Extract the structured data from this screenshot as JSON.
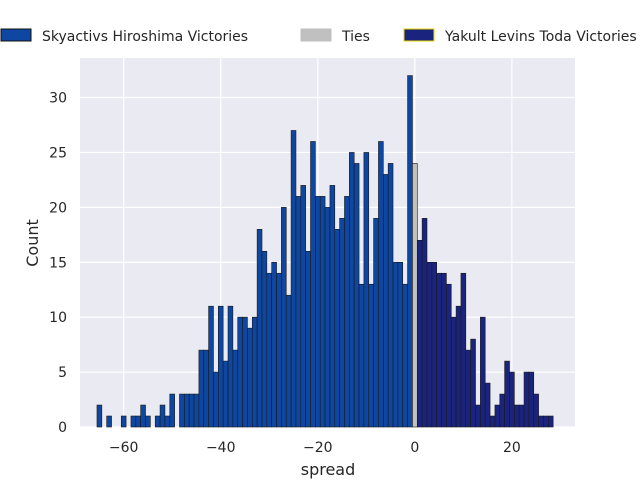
{
  "chart_data": {
    "type": "bar",
    "title": "",
    "xlabel": "spread",
    "ylabel": "Count",
    "xlim": [
      -69,
      33
    ],
    "ylim": [
      0,
      33.6
    ],
    "xticks": [
      -60,
      -40,
      -20,
      0,
      20
    ],
    "yticks": [
      0,
      5,
      10,
      15,
      20,
      25,
      30
    ],
    "grid": true,
    "legend_position": "top",
    "series": [
      {
        "name": "Skyactivs Hiroshima Victories",
        "color": "#0d47a1",
        "x": [
          -65,
          -64,
          -63,
          -62,
          -61,
          -60,
          -59,
          -58,
          -57,
          -56,
          -55,
          -54,
          -53,
          -52,
          -51,
          -50,
          -49,
          -48,
          -47,
          -46,
          -45,
          -44,
          -43,
          -42,
          -41,
          -40,
          -39,
          -38,
          -37,
          -36,
          -35,
          -34,
          -33,
          -32,
          -31,
          -30,
          -29,
          -28,
          -27,
          -26,
          -25,
          -24,
          -23,
          -22,
          -21,
          -20,
          -19,
          -18,
          -17,
          -16,
          -15,
          -14,
          -13,
          -12,
          -11,
          -10,
          -9,
          -8,
          -7,
          -6,
          -5,
          -4,
          -3,
          -2,
          -1
        ],
        "values": [
          2,
          0,
          1,
          0,
          0,
          1,
          0,
          1,
          1,
          2,
          1,
          0,
          1,
          2,
          1,
          3,
          0,
          3,
          3,
          3,
          3,
          7,
          7,
          11,
          5,
          11,
          6,
          11,
          7,
          10,
          10,
          9,
          10,
          18,
          16,
          14,
          15,
          14,
          20,
          12,
          27,
          21,
          22,
          16,
          26,
          21,
          21,
          20,
          22,
          18,
          19,
          21,
          25,
          24,
          13,
          25,
          13,
          19,
          26,
          23,
          24,
          15,
          15,
          13,
          32
        ]
      },
      {
        "name": "Ties",
        "color": "#c0c0c0",
        "x": [
          0
        ],
        "values": [
          24
        ]
      },
      {
        "name": "Yakult Levins Toda Victories",
        "color": "#1a237e",
        "x": [
          1,
          2,
          3,
          4,
          5,
          6,
          7,
          8,
          9,
          10,
          11,
          12,
          13,
          14,
          15,
          16,
          17,
          18,
          19,
          20,
          21,
          22,
          23,
          24,
          25,
          26,
          27,
          28
        ],
        "values": [
          17,
          19,
          15,
          15,
          14,
          14,
          13,
          10,
          11,
          14,
          7,
          8,
          2,
          10,
          4,
          1,
          2,
          3,
          6,
          5,
          2,
          2,
          5,
          5,
          3,
          1,
          1,
          1
        ]
      }
    ]
  }
}
